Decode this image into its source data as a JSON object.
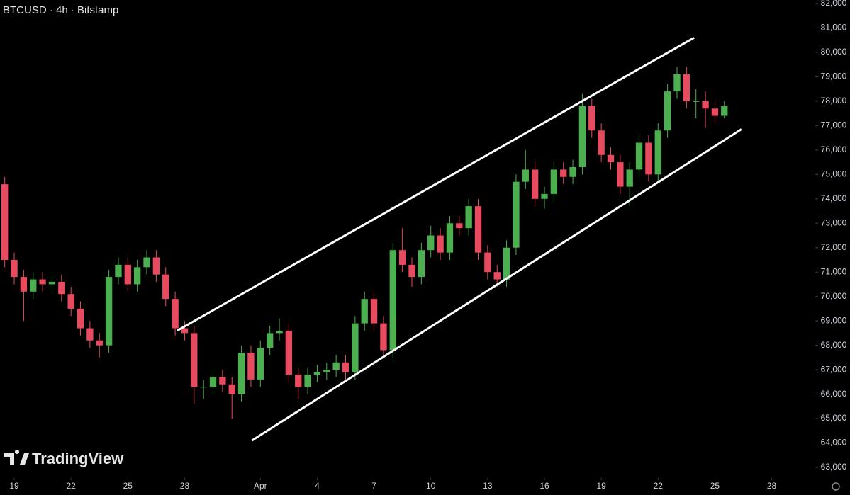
{
  "chart_data": {
    "type": "candlestick",
    "title": "BTCUSD · 4h · Bitstamp",
    "logo": "TradingView",
    "up_color": "#4caf50",
    "down_color": "#e84a5f",
    "line_color": "#ffffff",
    "xlim": [
      18.25,
      61.3
    ],
    "xticks": [
      19,
      22,
      25,
      28,
      {
        "value": 32,
        "label": "Apr"
      },
      {
        "value": 35,
        "label": "4"
      },
      {
        "value": 38,
        "label": "7"
      },
      {
        "value": 41,
        "label": "10"
      },
      {
        "value": 44,
        "label": "13"
      },
      {
        "value": 47,
        "label": "16"
      },
      {
        "value": 50,
        "label": "19"
      },
      {
        "value": 53,
        "label": "22"
      },
      {
        "value": 56,
        "label": "25"
      },
      {
        "value": 59,
        "label": "28"
      }
    ],
    "ylim": [
      62565,
      82145
    ],
    "yticks": [
      {
        "value": 63000,
        "label": "63,000"
      },
      {
        "value": 64000,
        "label": "64,000"
      },
      {
        "value": 65000,
        "label": "65,000"
      },
      {
        "value": 66000,
        "label": "66,000"
      },
      {
        "value": 67000,
        "label": "67,000"
      },
      {
        "value": 68000,
        "label": "68,000"
      },
      {
        "value": 69000,
        "label": "69,000"
      },
      {
        "value": 70000,
        "label": "70,000"
      },
      {
        "value": 71000,
        "label": "71,000"
      },
      {
        "value": 72000,
        "label": "72,000"
      },
      {
        "value": 73000,
        "label": "73,000"
      },
      {
        "value": 74000,
        "label": "74,000"
      },
      {
        "value": 75000,
        "label": "75,000"
      },
      {
        "value": 76000,
        "label": "76,000"
      },
      {
        "value": 77000,
        "label": "77,000"
      },
      {
        "value": 78000,
        "label": "78,000"
      },
      {
        "value": 79000,
        "label": "79,000"
      },
      {
        "value": 80000,
        "label": "80,000"
      },
      {
        "value": 81000,
        "label": "81,000"
      },
      {
        "value": 82000,
        "label": "82,000"
      }
    ],
    "x": [
      18.5,
      19,
      19.5,
      20,
      20.5,
      21,
      21.5,
      22,
      22.5,
      23,
      23.5,
      24,
      24.5,
      25,
      25.5,
      26,
      26.5,
      27,
      27.5,
      28,
      28.5,
      29,
      29.5,
      30,
      30.5,
      31,
      31.5,
      32,
      32.5,
      33,
      33.5,
      34,
      34.5,
      35,
      35.5,
      36,
      36.5,
      37,
      37.5,
      38,
      38.5,
      39,
      39.5,
      40,
      40.5,
      41,
      41.5,
      42,
      42.5,
      43,
      43.5,
      44,
      44.5,
      45,
      45.5,
      46,
      46.5,
      47,
      47.5,
      48,
      48.5,
      49,
      49.5,
      50,
      50.5,
      51,
      51.5,
      52,
      52.5,
      53,
      53.5,
      54,
      54.5,
      55,
      55.5,
      56,
      56.5
    ],
    "open": [
      74600,
      71500,
      70800,
      70200,
      70700,
      70500,
      70600,
      70100,
      69500,
      68700,
      68200,
      68000,
      70800,
      71300,
      70500,
      71200,
      71600,
      70900,
      69900,
      68700,
      68500,
      66300,
      66300,
      66700,
      66400,
      66000,
      67700,
      66600,
      67900,
      68500,
      68600,
      66800,
      66300,
      66800,
      66900,
      67000,
      67300,
      66900,
      68900,
      69900,
      68900,
      67800,
      71900,
      71300,
      70800,
      71900,
      72500,
      71800,
      73000,
      72800,
      73700,
      71800,
      71000,
      70700,
      72000,
      74700,
      75200,
      74000,
      74200,
      75200,
      74900,
      75300,
      77800,
      76800,
      75800,
      75500,
      74500,
      75200,
      76300,
      75000,
      76800,
      78400,
      79100,
      78000,
      78000,
      77700,
      77400
    ],
    "high": [
      74900,
      71800,
      71100,
      71000,
      71000,
      70900,
      70900,
      70400,
      69800,
      69000,
      68500,
      71100,
      71600,
      71600,
      71500,
      71900,
      71900,
      71200,
      70200,
      69000,
      68800,
      66600,
      67000,
      67000,
      66700,
      68000,
      68000,
      68200,
      68800,
      69100,
      68900,
      67100,
      67100,
      67200,
      67300,
      67600,
      67600,
      69200,
      70200,
      70200,
      69200,
      72200,
      72800,
      71600,
      72200,
      72900,
      72800,
      73300,
      73300,
      74000,
      74000,
      72100,
      71300,
      72300,
      75000,
      76000,
      75500,
      74500,
      75500,
      75500,
      75600,
      78300,
      78100,
      77100,
      76100,
      75800,
      75500,
      76600,
      76600,
      77100,
      78700,
      79400,
      79400,
      78500,
      78400,
      78000,
      78000
    ],
    "low": [
      71200,
      70500,
      69000,
      69900,
      70200,
      70200,
      69800,
      69200,
      68400,
      67900,
      67500,
      67700,
      70500,
      70200,
      70200,
      70900,
      70600,
      69600,
      68400,
      68200,
      65600,
      65800,
      66000,
      66100,
      65000,
      65700,
      66300,
      66300,
      67600,
      68200,
      66500,
      65800,
      66000,
      66500,
      66600,
      66700,
      66600,
      66600,
      68600,
      68600,
      67500,
      67500,
      71000,
      70400,
      70500,
      71600,
      71500,
      71500,
      72500,
      72500,
      71500,
      70700,
      70400,
      70400,
      71700,
      74400,
      73700,
      73600,
      73900,
      74600,
      74600,
      75000,
      76500,
      75500,
      75200,
      74200,
      73700,
      74900,
      74700,
      74700,
      76500,
      78100,
      77700,
      77300,
      76900,
      77100,
      77300
    ],
    "close": [
      71500,
      70800,
      70200,
      70700,
      70500,
      70600,
      70100,
      69500,
      68700,
      68200,
      68000,
      70800,
      71300,
      70500,
      71200,
      71600,
      70900,
      69900,
      68700,
      68500,
      66300,
      66300,
      66700,
      66400,
      66000,
      67700,
      66600,
      67900,
      68500,
      68600,
      66800,
      66300,
      66800,
      66900,
      67000,
      67300,
      66900,
      68900,
      69900,
      68900,
      67800,
      71900,
      71300,
      70800,
      71900,
      72500,
      71800,
      73000,
      72800,
      73700,
      71800,
      71000,
      70700,
      72000,
      74700,
      75200,
      74000,
      74200,
      75200,
      74900,
      75300,
      77800,
      76800,
      75800,
      75500,
      74500,
      75200,
      76300,
      75000,
      76800,
      78400,
      79100,
      78000,
      78000,
      77700,
      77400,
      77800
    ],
    "trendlines": [
      {
        "x": [
          27.6,
          54.9
        ],
        "y": [
          68600,
          80600
        ]
      },
      {
        "x": [
          31.55,
          57.4
        ],
        "y": [
          64100,
          76850
        ]
      }
    ]
  }
}
